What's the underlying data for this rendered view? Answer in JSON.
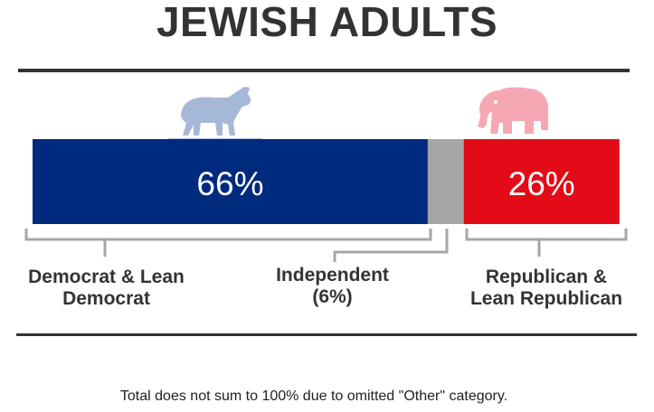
{
  "title": "JEWISH ADULTS",
  "footnote": "Total does not sum to 100% due to omitted \"Other\" category.",
  "colors": {
    "democrat": "#002a7e",
    "independent": "#a6a6a6",
    "republican": "#e20b17",
    "donkey": "#a6b8d8",
    "elephant": "#f5a8b3",
    "bracket": "#a6a6a6",
    "rule": "#333333"
  },
  "icons": {
    "democrat": "donkey-icon",
    "republican": "elephant-icon"
  },
  "chart_data": {
    "type": "bar",
    "orientation": "horizontal-stacked",
    "title": "JEWISH ADULTS",
    "categories": [
      "Democrat & Lean Democrat",
      "Independent",
      "Republican & Lean Republican"
    ],
    "values": [
      66,
      6,
      26
    ],
    "value_labels": [
      "66%",
      "",
      "26%"
    ],
    "category_labels": {
      "democrat_line1": "Democrat & Lean",
      "democrat_line2": "Democrat",
      "independent_line1": "Independent",
      "independent_line2": "(6%)",
      "republican_line1": "Republican &",
      "republican_line2": "Lean Republican"
    },
    "legend": "none",
    "grid": false
  }
}
